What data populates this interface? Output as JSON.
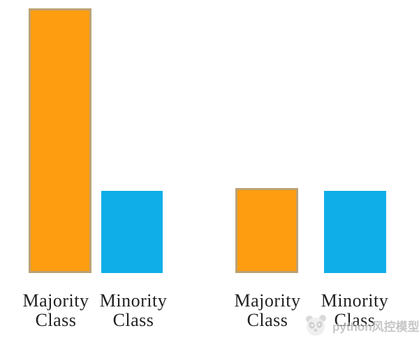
{
  "chart_data": {
    "type": "bar",
    "title": "",
    "xlabel": "",
    "ylabel": "",
    "ylim": [
      0,
      100
    ],
    "axes": "hidden",
    "grid": false,
    "legend": "none",
    "categories": [
      "Majority Class",
      "Minority Class",
      "Majority Class",
      "Minority Class"
    ],
    "bars": [
      {
        "label": "Majority Class",
        "label_line1": "Majority",
        "label_line2": "Class",
        "value": 100,
        "color": "orange",
        "group": "left"
      },
      {
        "label": "Minority Class",
        "label_line1": "Minority",
        "label_line2": "Class",
        "value": 31,
        "color": "blue",
        "group": "left"
      },
      {
        "label": "Majority Class",
        "label_line1": "Majority",
        "label_line2": "Class",
        "value": 32,
        "color": "orange",
        "group": "right"
      },
      {
        "label": "Minority Class",
        "label_line1": "Minority",
        "label_line2": "Class",
        "value": 31,
        "color": "blue",
        "group": "right"
      }
    ]
  },
  "colors": {
    "orange": "#FE9D0F",
    "orange_border": "#BDA173",
    "blue": "#10AEE8",
    "label_text": "#1f1f1f",
    "watermark_gray": "#9a9a9a"
  },
  "watermark": {
    "text": "python风控模型",
    "logo_icon": "panda-logo"
  }
}
